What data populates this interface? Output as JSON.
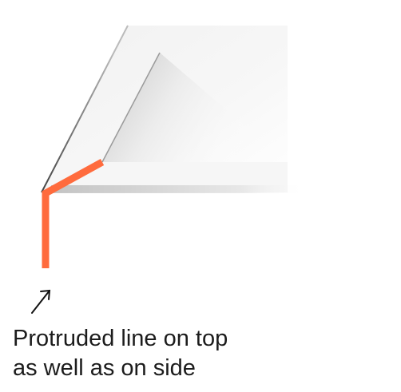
{
  "caption": {
    "line1": "Protruded line on top",
    "line2": "as well as on side"
  },
  "colors": {
    "highlight": "#ff6b3d",
    "edge": "#222222",
    "background": "#ffffff"
  },
  "icons": {
    "pointer": "arrow-up-right-icon"
  }
}
